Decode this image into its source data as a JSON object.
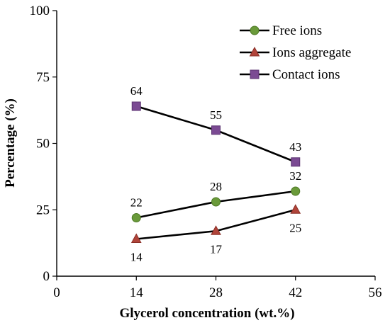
{
  "chart_data": {
    "type": "line",
    "xlabel": "Glycerol concentration (wt.%)",
    "ylabel": "Percentage (%)",
    "xlim": [
      0,
      56
    ],
    "ylim": [
      0,
      100
    ],
    "x_ticks": [
      0,
      14,
      28,
      42,
      56
    ],
    "y_ticks": [
      0,
      25,
      50,
      75,
      100
    ],
    "x": [
      14,
      28,
      42
    ],
    "series": [
      {
        "name": "Free ions",
        "values": [
          22,
          28,
          32
        ],
        "labels": [
          "22",
          "28",
          "32"
        ],
        "label_position": "above",
        "marker": "circle",
        "color": "#6a9a3a",
        "marker_stroke": "#4e7a26"
      },
      {
        "name": "Ions aggregate",
        "values": [
          14,
          17,
          25
        ],
        "labels": [
          "14",
          "17",
          "25"
        ],
        "label_position": "below",
        "marker": "triangle",
        "color": "#b0443a",
        "marker_stroke": "#8a2e26"
      },
      {
        "name": "Contact ions",
        "values": [
          64,
          55,
          43
        ],
        "labels": [
          "64",
          "55",
          "43"
        ],
        "label_position": "above",
        "marker": "square",
        "color": "#7b4a93",
        "marker_stroke": "#5b3370"
      }
    ],
    "grid": false,
    "legend_position": "top-right",
    "line_color": "#000000"
  }
}
